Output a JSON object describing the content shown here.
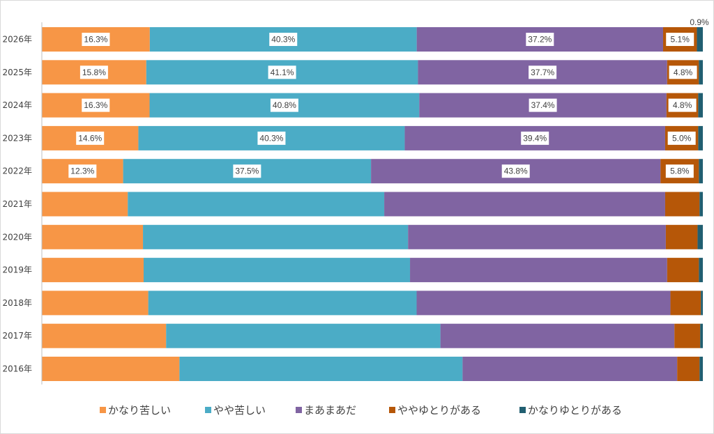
{
  "chart_data": {
    "type": "bar",
    "orientation": "horizontal",
    "stacked": "percent",
    "categories": [
      "2026年",
      "2025年",
      "2024年",
      "2023年",
      "2022年",
      "2021年",
      "2020年",
      "2019年",
      "2018年",
      "2017年",
      "2016年"
    ],
    "series": [
      {
        "name": "かなり苦しい",
        "color": "#F79646",
        "values": [
          16.3,
          15.8,
          16.3,
          14.6,
          12.3,
          13.0,
          15.3,
          15.4,
          16.1,
          18.8,
          20.9
        ],
        "labels": [
          "16.3%",
          "15.8%",
          "16.3%",
          "14.6%",
          "12.3%",
          "",
          "",
          "",
          "",
          "",
          ""
        ]
      },
      {
        "name": "やや苦しい",
        "color": "#4BACC6",
        "values": [
          40.3,
          41.1,
          40.8,
          40.3,
          37.5,
          38.8,
          40.1,
          40.3,
          40.6,
          41.5,
          43.0
        ],
        "labels": [
          "40.3%",
          "41.1%",
          "40.8%",
          "40.3%",
          "37.5%",
          "",
          "",
          "",
          "",
          "",
          ""
        ]
      },
      {
        "name": "まあまあだ",
        "color": "#8064A2",
        "values": [
          37.2,
          37.7,
          37.4,
          39.4,
          43.8,
          42.5,
          39.0,
          38.9,
          38.4,
          35.4,
          32.6
        ],
        "labels": [
          "37.2%",
          "37.7%",
          "37.4%",
          "39.4%",
          "43.8%",
          "",
          "",
          "",
          "",
          "",
          ""
        ]
      },
      {
        "name": "ややゆとりがある",
        "color": "#B65708",
        "values": [
          5.1,
          4.8,
          4.8,
          5.0,
          5.8,
          5.2,
          4.8,
          4.8,
          4.6,
          3.9,
          3.4
        ],
        "labels": [
          "5.1%",
          "4.8%",
          "4.8%",
          "5.0%",
          "5.8%",
          "",
          "",
          "",
          "",
          "",
          ""
        ]
      },
      {
        "name": "かなりゆとりがある",
        "color": "#215F71",
        "values": [
          0.9,
          0.6,
          0.7,
          0.7,
          0.6,
          0.5,
          0.8,
          0.6,
          0.3,
          0.4,
          0.5
        ],
        "labels": [
          "0.9%",
          "",
          "",
          "",
          "",
          "",
          "",
          "",
          "",
          "",
          ""
        ]
      }
    ],
    "xlim": [
      0,
      100
    ],
    "grid": false,
    "legend": "bottom",
    "title": "",
    "xlabel": "",
    "ylabel": ""
  }
}
